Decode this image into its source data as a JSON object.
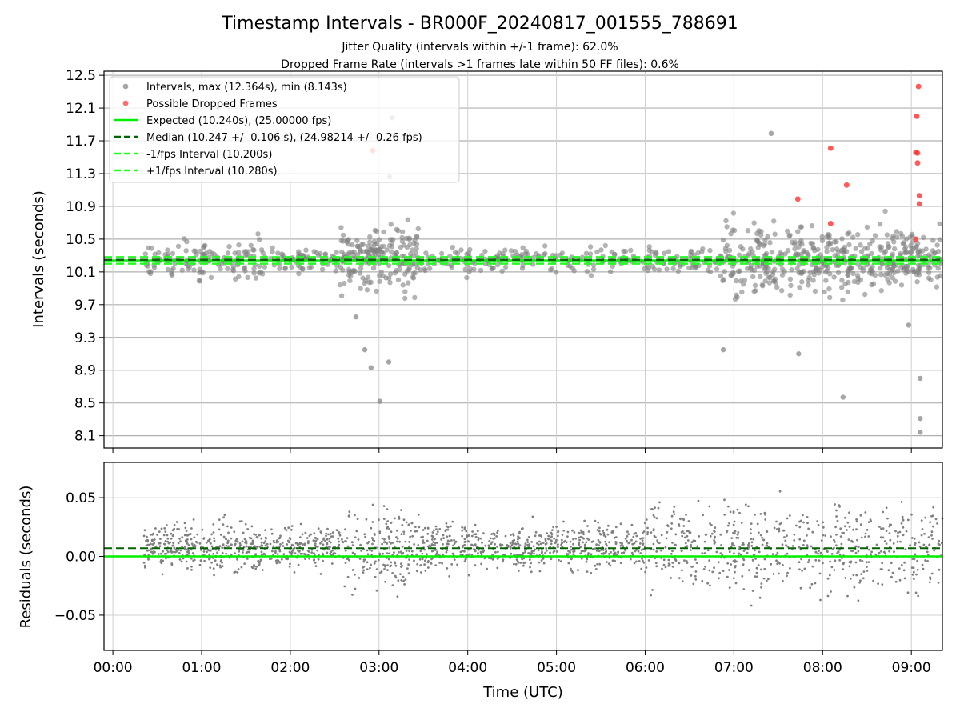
{
  "chart_data": [
    {
      "type": "scatter",
      "title": "Timestamp Intervals - BR000F_20240817_001555_788691",
      "subtitle_1": "Jitter Quality (intervals within +/-1 frame): 62.0%",
      "subtitle_2": "Dropped Frame Rate (intervals >1 frames late within 50 FF files): 0.6%",
      "ylabel": "Intervals (seconds)",
      "ylim": [
        7.95,
        12.55
      ],
      "xlim": [
        -0.1,
        9.35
      ],
      "yticks": [
        8.1,
        8.5,
        8.9,
        9.3,
        9.7,
        10.1,
        10.5,
        10.9,
        11.3,
        11.7,
        12.1,
        12.5
      ],
      "ytick_labels": [
        "8.1",
        "8.5",
        "8.9",
        "9.3",
        "9.7",
        "10.1",
        "10.5",
        "10.9",
        "11.3",
        "11.7",
        "12.1",
        "12.5"
      ],
      "grid": true,
      "legend_position": "top-left",
      "legend": [
        {
          "label": "Intervals, max (12.364s), min (8.143s)",
          "kind": "marker",
          "color": "#808080"
        },
        {
          "label": "Possible Dropped Frames",
          "kind": "marker",
          "color": "#ff3030"
        },
        {
          "label": "Expected (10.240s), (25.00000 fps)",
          "kind": "line",
          "color": "#00ee00"
        },
        {
          "label": "Median (10.247 +/- 0.106 s), (24.98214 +/- 0.26 fps)",
          "kind": "dashed",
          "color": "#006400"
        },
        {
          "label": "-1/fps Interval (10.200s)",
          "kind": "dashed",
          "color": "#22ff22"
        },
        {
          "label": "+1/fps Interval (10.280s)",
          "kind": "dashed",
          "color": "#22ff22"
        }
      ],
      "reference_lines": {
        "expected": 10.24,
        "median": 10.247,
        "minus_1fps": 10.2,
        "plus_1fps": 10.28
      },
      "dropped_frames": [
        {
          "x": 2.93,
          "y": 11.58
        },
        {
          "x": 7.72,
          "y": 10.99
        },
        {
          "x": 8.09,
          "y": 11.61
        },
        {
          "x": 8.09,
          "y": 10.69
        },
        {
          "x": 8.27,
          "y": 11.16
        },
        {
          "x": 9.05,
          "y": 11.56
        },
        {
          "x": 9.06,
          "y": 12.0
        },
        {
          "x": 9.07,
          "y": 11.55
        },
        {
          "x": 9.07,
          "y": 11.43
        },
        {
          "x": 9.08,
          "y": 12.364
        },
        {
          "x": 9.09,
          "y": 11.03
        },
        {
          "x": 9.09,
          "y": 10.93
        },
        {
          "x": 9.05,
          "y": 10.5
        }
      ],
      "normal_extremes": [
        {
          "x": 2.91,
          "y": 8.93
        },
        {
          "x": 3.01,
          "y": 8.52
        },
        {
          "x": 3.11,
          "y": 9.0
        },
        {
          "x": 2.74,
          "y": 9.55
        },
        {
          "x": 2.84,
          "y": 9.15
        },
        {
          "x": 3.15,
          "y": 11.98
        },
        {
          "x": 3.12,
          "y": 11.26
        },
        {
          "x": 2.99,
          "y": 11.72
        },
        {
          "x": 7.42,
          "y": 11.79
        },
        {
          "x": 8.23,
          "y": 8.57
        },
        {
          "x": 9.1,
          "y": 8.8
        },
        {
          "x": 9.1,
          "y": 8.31
        },
        {
          "x": 9.1,
          "y": 8.143
        },
        {
          "x": 6.88,
          "y": 9.15
        },
        {
          "x": 7.73,
          "y": 9.1
        },
        {
          "x": 8.97,
          "y": 9.45
        }
      ],
      "segments": [
        {
          "from": 0.35,
          "to": 1.85,
          "count": 140,
          "spread": 0.22
        },
        {
          "from": 1.85,
          "to": 2.55,
          "count": 60,
          "spread": 0.16
        },
        {
          "from": 2.55,
          "to": 3.45,
          "count": 190,
          "spread": 0.42
        },
        {
          "from": 3.45,
          "to": 6.85,
          "count": 220,
          "spread": 0.17
        },
        {
          "from": 6.85,
          "to": 9.35,
          "count": 460,
          "spread": 0.42
        }
      ]
    },
    {
      "type": "scatter",
      "xlabel": "Time (UTC)",
      "ylabel": "Residuals (seconds)",
      "ylim": [
        -0.08,
        0.08
      ],
      "xlim": [
        -0.1,
        9.35
      ],
      "yticks": [
        -0.05,
        0.0,
        0.05
      ],
      "ytick_labels": [
        "−0.05",
        "0.00",
        "0.05"
      ],
      "xticks": [
        0,
        1,
        2,
        3,
        4,
        5,
        6,
        7,
        8,
        9
      ],
      "xtick_labels": [
        "00:00",
        "01:00",
        "02:00",
        "03:00",
        "04:00",
        "05:00",
        "06:00",
        "07:00",
        "08:00",
        "09:00"
      ],
      "grid": true,
      "reference_lines": {
        "zero": 0.0,
        "median_offset": 0.007
      },
      "segments": [
        {
          "from": 0.35,
          "to": 2.6,
          "count": 560,
          "spread": 0.022
        },
        {
          "from": 2.6,
          "to": 3.45,
          "count": 200,
          "spread": 0.04
        },
        {
          "from": 3.45,
          "to": 6.0,
          "count": 620,
          "spread": 0.022
        },
        {
          "from": 6.0,
          "to": 9.35,
          "count": 620,
          "spread": 0.04
        }
      ]
    }
  ],
  "colors": {
    "grid": "#b0b0b0",
    "points": "#808080",
    "dropped": "#ff3030",
    "expected": "#00ee00",
    "median": "#006400",
    "bounds": "#22ff22"
  }
}
